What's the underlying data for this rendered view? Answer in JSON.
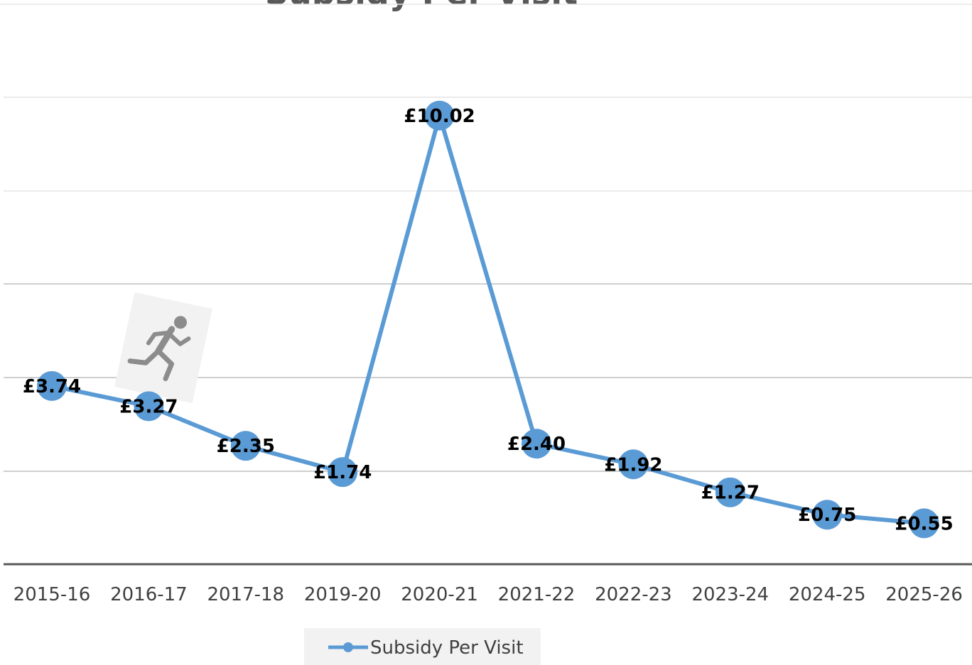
{
  "chart_data": {
    "type": "line",
    "title": "Subsidy Per Visit",
    "categories": [
      "2015-16",
      "2016-17",
      "2017-18",
      "2019-20",
      "2020-21",
      "2021-22",
      "2022-23",
      "2023-24",
      "2024-25",
      "2025-26"
    ],
    "series": [
      {
        "name": "Subsidy Per Visit",
        "values": [
          3.74,
          3.27,
          2.35,
          1.74,
          10.02,
          2.4,
          1.92,
          1.27,
          0.75,
          0.55
        ],
        "data_labels": [
          "£3.74",
          "£3.27",
          "£2.35",
          "£1.74",
          "£10.02",
          "£2.40",
          "£1.92",
          "£1.27",
          "£0.75",
          "£0.55"
        ]
      }
    ],
    "ylim": [
      -0.4,
      10.48
    ],
    "grid": true,
    "legend_position": "bottom",
    "colors": {
      "series": "#5B9BD5",
      "grid": "#D9D9D9",
      "axis": "#595959"
    },
    "decoration_icon": "running-person-icon"
  }
}
